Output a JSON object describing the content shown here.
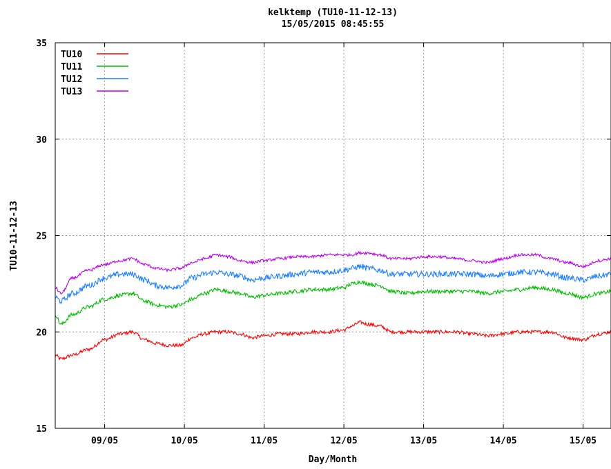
{
  "chart_data": {
    "type": "line",
    "title": "kelktemp (TU10-11-12-13)",
    "subtitle": "15/05/2015 08:45:55",
    "xlabel": "Day/Month",
    "ylabel": "TU10-11-12-13",
    "ylim": [
      15,
      35
    ],
    "yticks": [
      15,
      20,
      25,
      30,
      35
    ],
    "xlim": [
      8.38,
      15.35
    ],
    "xticks": [
      {
        "label": "09/05",
        "value": 9
      },
      {
        "label": "10/05",
        "value": 10
      },
      {
        "label": "11/05",
        "value": 11
      },
      {
        "label": "12/05",
        "value": 12
      },
      {
        "label": "13/05",
        "value": 13
      },
      {
        "label": "14/05",
        "value": 14
      },
      {
        "label": "15/05",
        "value": 15
      }
    ],
    "grid": true,
    "legend_position": "top-left",
    "series": [
      {
        "name": "TU10",
        "color": "#ff0000",
        "noise": 0.09,
        "x": [
          8.38,
          8.45,
          8.6,
          8.8,
          9.0,
          9.2,
          9.35,
          9.5,
          9.65,
          9.8,
          9.95,
          10.1,
          10.25,
          10.4,
          10.55,
          10.7,
          10.85,
          11.0,
          11.2,
          11.4,
          11.6,
          11.8,
          12.0,
          12.1,
          12.2,
          12.3,
          12.45,
          12.6,
          12.8,
          13.0,
          13.2,
          13.4,
          13.6,
          13.8,
          14.0,
          14.2,
          14.4,
          14.6,
          14.8,
          15.0,
          15.2,
          15.35
        ],
        "y": [
          18.8,
          18.6,
          18.8,
          19.1,
          19.6,
          19.9,
          20.0,
          19.6,
          19.4,
          19.3,
          19.3,
          19.7,
          19.9,
          20.0,
          20.0,
          19.9,
          19.7,
          19.8,
          19.9,
          19.9,
          20.0,
          20.0,
          20.1,
          20.3,
          20.5,
          20.4,
          20.3,
          20.0,
          20.0,
          20.0,
          20.0,
          20.0,
          19.9,
          19.8,
          19.9,
          20.0,
          20.0,
          20.0,
          19.7,
          19.6,
          19.9,
          20.0
        ]
      },
      {
        "name": "TU11",
        "color": "#00bb00",
        "noise": 0.1,
        "x": [
          8.38,
          8.45,
          8.6,
          8.8,
          9.0,
          9.2,
          9.35,
          9.5,
          9.65,
          9.8,
          9.95,
          10.1,
          10.25,
          10.4,
          10.55,
          10.7,
          10.85,
          11.0,
          11.2,
          11.4,
          11.6,
          11.8,
          12.0,
          12.1,
          12.2,
          12.3,
          12.45,
          12.6,
          12.8,
          13.0,
          13.2,
          13.4,
          13.6,
          13.8,
          14.0,
          14.2,
          14.4,
          14.6,
          14.8,
          15.0,
          15.2,
          15.35
        ],
        "y": [
          20.9,
          20.4,
          20.9,
          21.3,
          21.7,
          21.9,
          22.0,
          21.6,
          21.4,
          21.3,
          21.4,
          21.7,
          22.0,
          22.2,
          22.1,
          22.0,
          21.8,
          21.9,
          22.0,
          22.1,
          22.2,
          22.2,
          22.3,
          22.5,
          22.6,
          22.5,
          22.4,
          22.1,
          22.0,
          22.1,
          22.1,
          22.1,
          22.1,
          22.0,
          22.1,
          22.2,
          22.3,
          22.2,
          22.0,
          21.8,
          22.0,
          22.1
        ]
      },
      {
        "name": "TU12",
        "color": "#1f7fff",
        "noise": 0.15,
        "x": [
          8.38,
          8.45,
          8.6,
          8.8,
          9.0,
          9.2,
          9.35,
          9.5,
          9.65,
          9.8,
          9.95,
          10.1,
          10.25,
          10.4,
          10.55,
          10.7,
          10.85,
          11.0,
          11.2,
          11.4,
          11.6,
          11.8,
          12.0,
          12.1,
          12.2,
          12.3,
          12.45,
          12.6,
          12.8,
          13.0,
          13.2,
          13.4,
          13.6,
          13.8,
          14.0,
          14.2,
          14.4,
          14.6,
          14.8,
          15.0,
          15.2,
          15.35
        ],
        "y": [
          21.8,
          21.6,
          22.0,
          22.4,
          22.8,
          23.0,
          23.0,
          22.7,
          22.4,
          22.3,
          22.4,
          22.8,
          23.0,
          23.1,
          23.0,
          22.9,
          22.7,
          22.8,
          22.9,
          23.0,
          23.1,
          23.1,
          23.2,
          23.3,
          23.4,
          23.3,
          23.2,
          23.0,
          23.0,
          23.0,
          23.0,
          23.0,
          23.0,
          22.9,
          23.0,
          23.1,
          23.1,
          23.0,
          22.8,
          22.7,
          22.9,
          23.0
        ]
      },
      {
        "name": "TU13",
        "color": "#bb00ee",
        "noise": 0.07,
        "x": [
          8.38,
          8.45,
          8.6,
          8.8,
          9.0,
          9.2,
          9.35,
          9.5,
          9.65,
          9.8,
          9.95,
          10.1,
          10.25,
          10.4,
          10.55,
          10.7,
          10.85,
          11.0,
          11.2,
          11.4,
          11.6,
          11.8,
          12.0,
          12.1,
          12.2,
          12.3,
          12.45,
          12.6,
          12.8,
          13.0,
          13.2,
          13.4,
          13.6,
          13.8,
          14.0,
          14.2,
          14.4,
          14.6,
          14.8,
          15.0,
          15.2,
          15.35
        ],
        "y": [
          22.3,
          22.0,
          22.8,
          23.2,
          23.5,
          23.7,
          23.8,
          23.5,
          23.3,
          23.2,
          23.3,
          23.6,
          23.8,
          24.0,
          23.9,
          23.7,
          23.6,
          23.7,
          23.8,
          23.9,
          23.9,
          24.0,
          24.0,
          24.0,
          24.1,
          24.1,
          24.0,
          23.8,
          23.8,
          23.9,
          23.9,
          23.8,
          23.7,
          23.6,
          23.8,
          24.0,
          24.0,
          23.8,
          23.6,
          23.4,
          23.7,
          23.8
        ]
      }
    ]
  }
}
